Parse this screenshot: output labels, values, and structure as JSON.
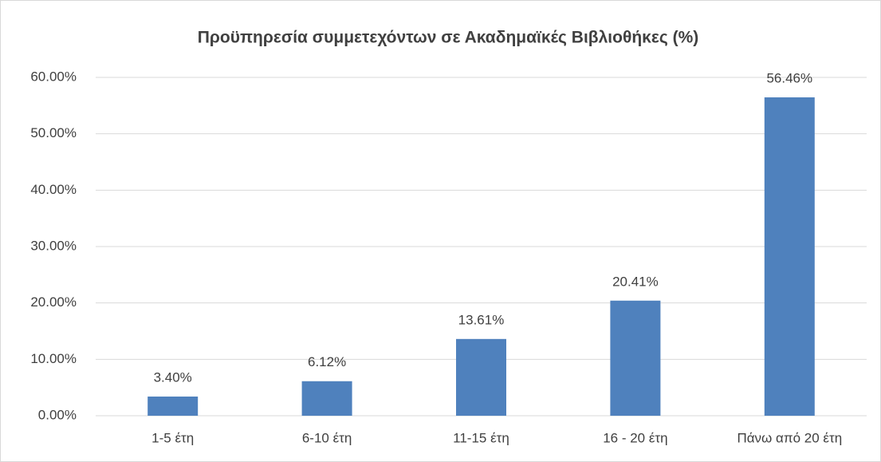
{
  "chart_data": {
    "type": "bar",
    "title": "Προϋπηρεσία συμμετεχόντων σε Ακαδημαϊκές Βιβλιοθήκες (%)",
    "categories": [
      "1-5 έτη",
      "6-10 έτη",
      "11-15 έτη",
      "16 - 20 έτη",
      "Πάνω από 20 έτη"
    ],
    "values": [
      3.4,
      6.12,
      13.61,
      20.41,
      56.46
    ],
    "value_labels": [
      "3.40%",
      "6.12%",
      "13.61%",
      "20.41%",
      "56.46%"
    ],
    "color": "#4f81bd",
    "ylim": [
      0,
      60
    ],
    "yticks": [
      {
        "value": 0,
        "label": "0.00%"
      },
      {
        "value": 10,
        "label": "10.00%"
      },
      {
        "value": 20,
        "label": "20.00%"
      },
      {
        "value": 30,
        "label": "30.00%"
      },
      {
        "value": 40,
        "label": "40.00%"
      },
      {
        "value": 50,
        "label": "50.00%"
      },
      {
        "value": 60,
        "label": "60.00%"
      }
    ],
    "grid": true
  }
}
